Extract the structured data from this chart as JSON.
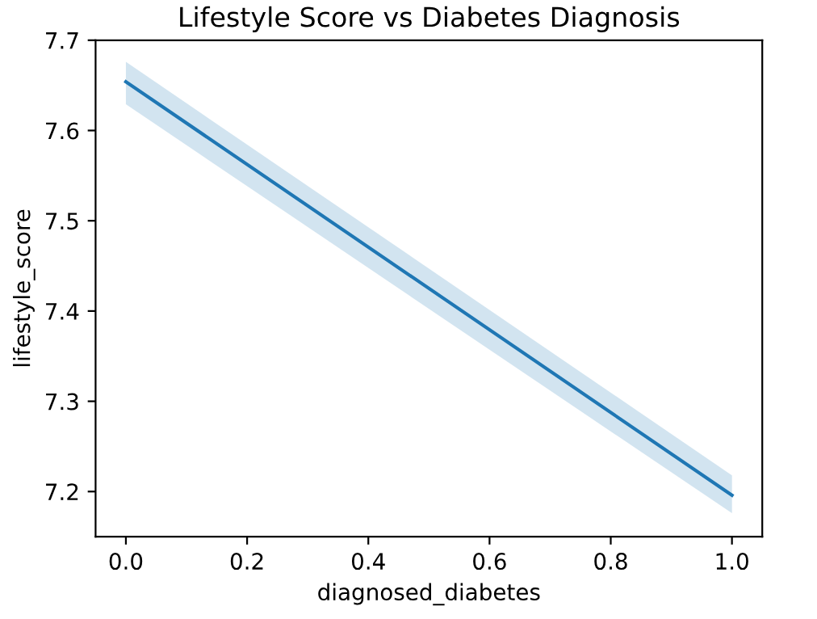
{
  "chart_data": {
    "type": "line",
    "title": "Lifestyle Score vs Diabetes Diagnosis",
    "xlabel": "diagnosed_diabetes",
    "ylabel": "lifestyle_score",
    "x": [
      0,
      1
    ],
    "series": [
      {
        "color": "#1f77b4",
        "values": [
          7.654,
          7.196
        ],
        "lower": [
          7.629,
          7.176
        ],
        "upper": [
          7.676,
          7.218
        ]
      }
    ],
    "xlim": [
      -0.05,
      1.05
    ],
    "xticks": [
      {
        "value": 0,
        "label": "0.0"
      },
      0.2,
      0.4,
      0.6,
      0.8,
      {
        "value": 1,
        "label": "1.0"
      }
    ],
    "ylim": [
      7.15,
      7.7
    ],
    "yticks": [
      7.2,
      7.3,
      7.4,
      7.5,
      7.6,
      7.7
    ],
    "grid": false,
    "legend": false
  }
}
